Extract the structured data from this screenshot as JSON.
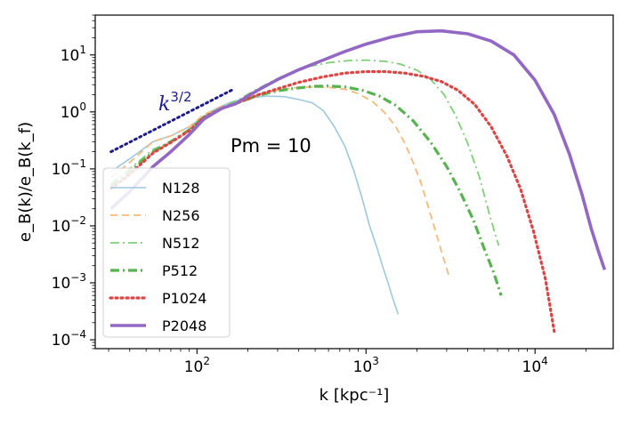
{
  "chart_data": {
    "type": "line",
    "x_scale": "log",
    "y_scale": "log",
    "xlim": [
      25,
      29000
    ],
    "ylim": [
      7e-05,
      50
    ],
    "xlabel": "k [kpc⁻¹]",
    "ylabel": "e_B(k)/e_B(k_f)",
    "x_tick_labels": [
      {
        "value": 100,
        "base": "10",
        "exp": "2"
      },
      {
        "value": 1000,
        "base": "10",
        "exp": "3"
      },
      {
        "value": 10000,
        "base": "10",
        "exp": "4"
      }
    ],
    "y_tick_labels": [
      {
        "value": 0.0001,
        "base": "10",
        "exp": "−4"
      },
      {
        "value": 0.001,
        "base": "10",
        "exp": "−3"
      },
      {
        "value": 0.01,
        "base": "10",
        "exp": "−2"
      },
      {
        "value": 0.1,
        "base": "10",
        "exp": "−1"
      },
      {
        "value": 1,
        "base": "10",
        "exp": "0"
      },
      {
        "value": 10,
        "base": "10",
        "exp": "1"
      }
    ],
    "annotations": {
      "power_law_label": {
        "base": "k",
        "exp": "3/2"
      },
      "pm_label": "Pm = 10"
    },
    "reference_line": {
      "name": "k^3/2",
      "color": "#1c1c8c",
      "x": [
        31,
        160
      ],
      "y": [
        0.2,
        2.4
      ]
    },
    "legend_location": "lower-left",
    "series": [
      {
        "name": "N128",
        "color": "#9ec8e0",
        "style": "solid",
        "width": 1.6,
        "x": [
          31,
          40,
          55,
          70,
          90,
          110,
          130,
          160,
          200,
          260,
          330,
          400,
          480,
          560,
          650,
          750,
          850,
          950,
          1050,
          1150,
          1250,
          1350,
          1450,
          1550
        ],
        "y": [
          0.09,
          0.15,
          0.3,
          0.38,
          0.55,
          0.85,
          1.15,
          1.5,
          1.75,
          1.9,
          1.85,
          1.65,
          1.45,
          1.05,
          0.55,
          0.25,
          0.09,
          0.03,
          0.01,
          0.0045,
          0.002,
          0.001,
          0.0005,
          0.00028
        ]
      },
      {
        "name": "N256",
        "color": "#f7b97a",
        "style": "dashed",
        "width": 1.8,
        "x": [
          31,
          40,
          55,
          70,
          90,
          110,
          140,
          180,
          230,
          300,
          380,
          480,
          600,
          750,
          900,
          1100,
          1300,
          1500,
          1700,
          1900,
          2100,
          2300,
          2550,
          2800,
          3100
        ],
        "y": [
          0.07,
          0.13,
          0.3,
          0.38,
          0.55,
          0.9,
          1.25,
          1.6,
          2.0,
          2.4,
          2.65,
          2.75,
          2.7,
          2.5,
          2.1,
          1.5,
          0.95,
          0.55,
          0.28,
          0.13,
          0.06,
          0.025,
          0.009,
          0.0035,
          0.0013
        ]
      },
      {
        "name": "N512",
        "color": "#7fcf79",
        "style": "dashdot",
        "width": 1.8,
        "x": [
          31,
          40,
          55,
          70,
          90,
          110,
          140,
          180,
          220,
          280,
          350,
          450,
          600,
          800,
          1000,
          1300,
          1600,
          2000,
          2400,
          2900,
          3400,
          4000,
          4700,
          5400,
          6100
        ],
        "y": [
          0.055,
          0.1,
          0.22,
          0.3,
          0.5,
          0.85,
          1.2,
          1.7,
          2.4,
          3.5,
          4.8,
          6.2,
          7.3,
          8.0,
          8.1,
          7.7,
          6.9,
          5.4,
          3.8,
          2.0,
          0.85,
          0.28,
          0.07,
          0.015,
          0.0045
        ]
      },
      {
        "name": "P512",
        "color": "#56b34f",
        "style": "dashdot",
        "width": 3.2,
        "x": [
          31,
          40,
          55,
          70,
          90,
          110,
          140,
          180,
          230,
          300,
          380,
          480,
          600,
          750,
          950,
          1200,
          1500,
          1900,
          2400,
          3000,
          3600,
          4300,
          5000,
          5700,
          6300
        ],
        "y": [
          0.05,
          0.09,
          0.2,
          0.3,
          0.48,
          0.8,
          1.15,
          1.5,
          1.95,
          2.35,
          2.6,
          2.8,
          2.85,
          2.75,
          2.4,
          1.9,
          1.3,
          0.7,
          0.3,
          0.11,
          0.04,
          0.013,
          0.004,
          0.0015,
          0.0006
        ]
      },
      {
        "name": "P1024",
        "color": "#dd4444",
        "style": "dotted",
        "width": 3.2,
        "x": [
          31,
          40,
          55,
          70,
          90,
          110,
          140,
          180,
          230,
          300,
          400,
          550,
          750,
          1000,
          1300,
          1700,
          2200,
          2800,
          3500,
          4400,
          5500,
          6800,
          8200,
          9800,
          11500,
          13000
        ],
        "y": [
          0.045,
          0.08,
          0.19,
          0.29,
          0.47,
          0.8,
          1.15,
          1.5,
          2.0,
          2.55,
          3.3,
          4.1,
          4.8,
          5.1,
          5.1,
          4.8,
          4.2,
          3.4,
          2.4,
          1.35,
          0.55,
          0.17,
          0.045,
          0.008,
          0.0012,
          0.00014
        ]
      },
      {
        "name": "P2048",
        "color": "#9268c4",
        "style": "solid",
        "width": 3.6,
        "x": [
          31,
          40,
          55,
          70,
          90,
          110,
          140,
          170,
          200,
          240,
          300,
          400,
          550,
          750,
          1000,
          1400,
          2000,
          2800,
          4000,
          5500,
          7500,
          10000,
          13000,
          16000,
          19000,
          21500,
          24000,
          25800
        ],
        "y": [
          0.02,
          0.04,
          0.11,
          0.2,
          0.4,
          0.75,
          1.15,
          1.4,
          1.9,
          2.6,
          3.7,
          5.5,
          8.0,
          11.5,
          15.5,
          20.5,
          25.5,
          26.5,
          23.5,
          17.5,
          10.0,
          3.6,
          0.9,
          0.18,
          0.035,
          0.009,
          0.0032,
          0.0017
        ]
      }
    ]
  }
}
